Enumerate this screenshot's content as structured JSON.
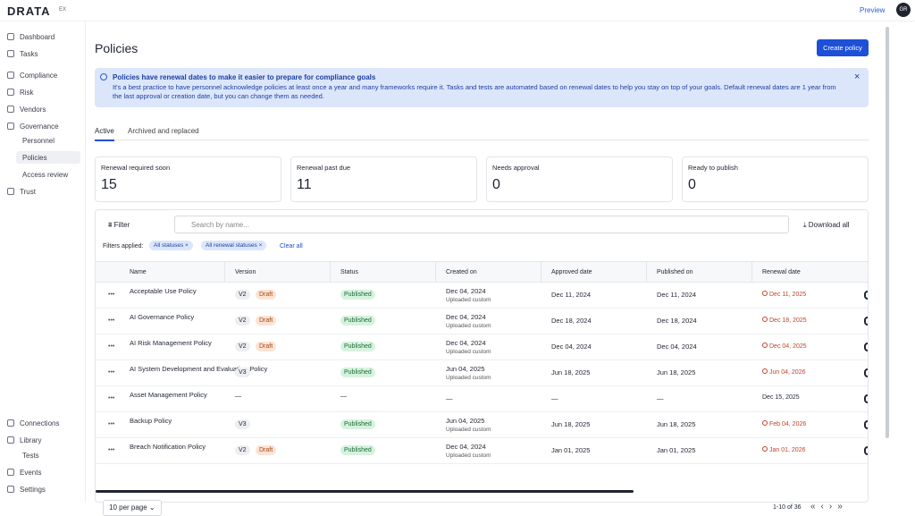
{
  "header": {
    "brand": "DRATA",
    "workspace": "EX",
    "preview": "Preview",
    "avatar": "GR"
  },
  "sidebar": {
    "top": [
      {
        "label": "Dashboard"
      },
      {
        "label": "Tasks"
      },
      {
        "label": "Compliance"
      },
      {
        "label": "Risk"
      },
      {
        "label": "Vendors"
      },
      {
        "label": "Governance"
      },
      {
        "label": "Personnel",
        "sub": true
      },
      {
        "label": "Policies",
        "sub": true,
        "active": true
      },
      {
        "label": "Access review",
        "sub": true
      },
      {
        "label": "Trust"
      }
    ],
    "bottom": [
      {
        "label": "Connections"
      },
      {
        "label": "Library"
      },
      {
        "label": "Tests",
        "sub": true
      },
      {
        "label": "Events"
      },
      {
        "label": "Settings"
      }
    ]
  },
  "page": {
    "title": "Policies",
    "create_button": "Create policy",
    "banner": {
      "title": "Policies have renewal dates to make it easier to prepare for compliance goals",
      "text": "It's a best practice to have personnel acknowledge policies at least once a year and many frameworks require it. Tasks and tests are automated based on renewal dates to help you stay on top of your goals. Default renewal dates are 1 year from the last approval or creation date, but you can change them as needed."
    },
    "tabs": [
      "Active",
      "Archived and replaced"
    ],
    "stats": [
      {
        "label": "Renewal required soon",
        "value": "15"
      },
      {
        "label": "Renewal past due",
        "value": "11"
      },
      {
        "label": "Needs approval",
        "value": "0"
      },
      {
        "label": "Ready to publish",
        "value": "0"
      }
    ],
    "toolbar": {
      "filter": "Filter",
      "search_placeholder": "Search by name...",
      "download": "Download all",
      "filters_applied": "Filters applied:",
      "chips": [
        "All statuses",
        "All renewal statuses"
      ],
      "clear": "Clear all"
    },
    "table": {
      "columns": [
        "Name",
        "Version",
        "Status",
        "Created on",
        "Approved date",
        "Published on",
        "Renewal date"
      ],
      "rows": [
        {
          "name": "Acceptable Use Policy",
          "version": "V2",
          "draft": "Draft",
          "status": "Published",
          "created": "Dec 04, 2024",
          "created_note": "Uploaded custom",
          "approved": "Dec 11, 2024",
          "published": "Dec 11, 2024",
          "renewal": "Dec 11, 2025",
          "renewal_color": "#c0432c"
        },
        {
          "name": "AI Governance Policy",
          "version": "V2",
          "draft": "Draft",
          "status": "Published",
          "created": "Dec 04, 2024",
          "created_note": "Uploaded custom",
          "approved": "Dec 18, 2024",
          "published": "Dec 18, 2024",
          "renewal": "Dec 18, 2025",
          "renewal_color": "#c0432c"
        },
        {
          "name": "AI Risk Management Policy",
          "version": "V2",
          "draft": "Draft",
          "status": "Published",
          "created": "Dec 04, 2024",
          "created_note": "Uploaded custom",
          "approved": "Dec 04, 2024",
          "published": "Dec 04, 2024",
          "renewal": "Dec 04, 2025",
          "renewal_color": "#c0432c"
        },
        {
          "name": "AI System Development and Evaluation Policy",
          "version": "V3",
          "status": "Published",
          "created": "Jun 04, 2025",
          "created_note": "Uploaded custom",
          "approved": "Jun 18, 2025",
          "published": "Jun 18, 2025",
          "renewal": "Jun 04, 2026",
          "renewal_color": "#c0432c"
        },
        {
          "name": "Asset Management Policy",
          "version": "—",
          "status": "—",
          "created": "—",
          "approved": "—",
          "published": "—",
          "renewal": "Dec 15, 2025",
          "renewal_color": "#1f2430"
        },
        {
          "name": "Backup Policy",
          "version": "V3",
          "status": "Published",
          "created": "Jun 04, 2025",
          "created_note": "Uploaded custom",
          "approved": "Jun 18, 2025",
          "published": "Jun 18, 2025",
          "renewal": "Feb 04, 2026",
          "renewal_color": "#c0432c"
        },
        {
          "name": "Breach Notification Policy",
          "version": "V2",
          "draft": "Draft",
          "status": "Published",
          "created": "Dec 04, 2024",
          "created_note": "Uploaded custom",
          "approved": "Jan 01, 2025",
          "published": "Jan 01, 2025",
          "renewal": "Jan 01, 2026",
          "renewal_color": "#c0432c"
        }
      ]
    },
    "footer": {
      "per_page": "10 per page",
      "range": "1-10 of 36"
    }
  }
}
